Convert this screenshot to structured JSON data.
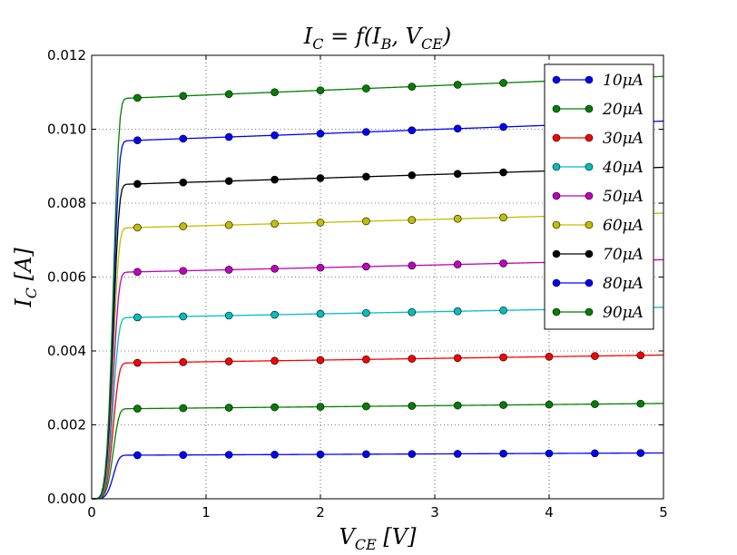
{
  "chart_data": {
    "type": "line",
    "title": {
      "main": "I",
      "sub": "C",
      "rest_pre": " = f(I",
      "sub2": "B",
      "mid": ", V",
      "sub3": "CE",
      "end": ")"
    },
    "xlabel": {
      "main": "V",
      "sub": "CE",
      "unit": " [V]"
    },
    "ylabel": {
      "main": "I",
      "sub": "C",
      "unit": " [A]"
    },
    "xlim": [
      0,
      5
    ],
    "ylim": [
      0,
      0.012
    ],
    "xticks": [
      0,
      1,
      2,
      3,
      4,
      5
    ],
    "xtick_labels": [
      "0",
      "1",
      "2",
      "3",
      "4",
      "5"
    ],
    "yticks": [
      0,
      0.002,
      0.004,
      0.006,
      0.008,
      0.01,
      0.012
    ],
    "ytick_labels": [
      "0.000",
      "0.002",
      "0.004",
      "0.006",
      "0.008",
      "0.010",
      "0.012"
    ],
    "grid": true,
    "legend_position": "top-right",
    "marker_x": [
      0.4,
      0.8,
      1.2,
      1.6,
      2.0,
      2.4,
      2.8,
      3.2,
      3.6,
      4.0,
      4.4,
      4.8
    ],
    "series": [
      {
        "name": "10μA",
        "color": "#0000ff",
        "sat_start": 0.00118,
        "sat_end": 0.00124
      },
      {
        "name": "20μA",
        "color": "#008000",
        "sat_start": 0.00244,
        "sat_end": 0.00258
      },
      {
        "name": "30μA",
        "color": "#ff0000",
        "sat_start": 0.00368,
        "sat_end": 0.00389
      },
      {
        "name": "40μA",
        "color": "#00bfbf",
        "sat_start": 0.00491,
        "sat_end": 0.00518
      },
      {
        "name": "50μA",
        "color": "#bf00bf",
        "sat_start": 0.00614,
        "sat_end": 0.00647
      },
      {
        "name": "60μA",
        "color": "#bfbf00",
        "sat_start": 0.00734,
        "sat_end": 0.00773
      },
      {
        "name": "70μA",
        "color": "#000000",
        "sat_start": 0.00852,
        "sat_end": 0.00897
      },
      {
        "name": "80μA",
        "color": "#0000ff",
        "sat_start": 0.0097,
        "sat_end": 0.01022
      },
      {
        "name": "90μA",
        "color": "#008000",
        "sat_start": 0.01085,
        "sat_end": 0.01143
      }
    ]
  }
}
